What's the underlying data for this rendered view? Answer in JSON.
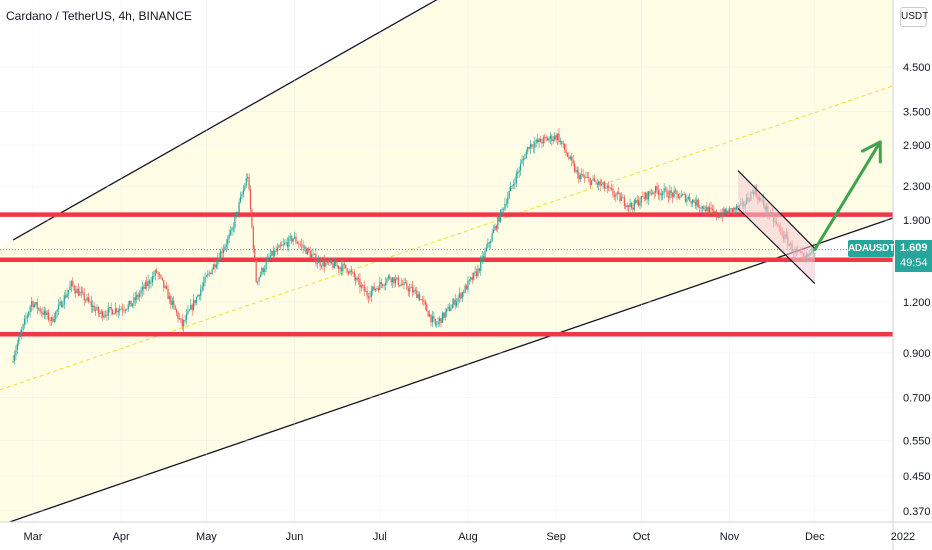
{
  "header": {
    "title": "Cardano / TetherUS, 4h, BINANCE",
    "currency": "USDT"
  },
  "price_tag": {
    "symbol": "ADAUSDT",
    "price": "1.609",
    "timer": "49:54",
    "color": "#26a69a"
  },
  "colors": {
    "up_candle": "#26a69a",
    "down_candle": "#ef5350",
    "support_resistance_line": "#f23645",
    "channel_fill": "#fffde6",
    "channel_line": "#131722",
    "channel_midline": "#f7e24a",
    "falling_wedge_fill": "#f8c8d4",
    "projection_arrow": "#3fa34d"
  },
  "chart_data": {
    "type": "candlestick",
    "symbol": "ADAUSDT",
    "interval": "4h",
    "exchange": "BINANCE",
    "y_scale": "log",
    "y_ticks": [
      "4.500",
      "3.500",
      "2.900",
      "2.300",
      "1.900",
      "1.200",
      "0.900",
      "0.700",
      "0.550",
      "0.450",
      "0.370"
    ],
    "x_ticks": [
      "Mar",
      "Apr",
      "May",
      "Jun",
      "Jul",
      "Aug",
      "Sep",
      "Oct",
      "Nov",
      "Dec",
      "2022"
    ],
    "last_price": 1.609,
    "price_path": [
      {
        "x": "2021-02-22",
        "y": 0.86
      },
      {
        "x": "2021-03-01",
        "y": 1.2
      },
      {
        "x": "2021-03-08",
        "y": 1.08
      },
      {
        "x": "2021-03-15",
        "y": 1.32
      },
      {
        "x": "2021-03-25",
        "y": 1.12
      },
      {
        "x": "2021-04-05",
        "y": 1.18
      },
      {
        "x": "2021-04-14",
        "y": 1.42
      },
      {
        "x": "2021-04-23",
        "y": 1.05
      },
      {
        "x": "2021-05-01",
        "y": 1.35
      },
      {
        "x": "2021-05-10",
        "y": 1.75
      },
      {
        "x": "2021-05-16",
        "y": 2.45
      },
      {
        "x": "2021-05-19",
        "y": 1.35
      },
      {
        "x": "2021-05-24",
        "y": 1.55
      },
      {
        "x": "2021-06-01",
        "y": 1.72
      },
      {
        "x": "2021-06-10",
        "y": 1.5
      },
      {
        "x": "2021-06-20",
        "y": 1.45
      },
      {
        "x": "2021-06-27",
        "y": 1.25
      },
      {
        "x": "2021-07-05",
        "y": 1.38
      },
      {
        "x": "2021-07-15",
        "y": 1.25
      },
      {
        "x": "2021-07-21",
        "y": 1.05
      },
      {
        "x": "2021-07-30",
        "y": 1.25
      },
      {
        "x": "2021-08-05",
        "y": 1.43
      },
      {
        "x": "2021-08-14",
        "y": 2.05
      },
      {
        "x": "2021-08-23",
        "y": 2.9
      },
      {
        "x": "2021-09-02",
        "y": 3.05
      },
      {
        "x": "2021-09-09",
        "y": 2.45
      },
      {
        "x": "2021-09-18",
        "y": 2.3
      },
      {
        "x": "2021-09-28",
        "y": 2.05
      },
      {
        "x": "2021-10-06",
        "y": 2.25
      },
      {
        "x": "2021-10-18",
        "y": 2.15
      },
      {
        "x": "2021-10-28",
        "y": 1.95
      },
      {
        "x": "2021-11-06",
        "y": 2.05
      },
      {
        "x": "2021-11-10",
        "y": 2.25
      },
      {
        "x": "2021-11-18",
        "y": 1.85
      },
      {
        "x": "2021-11-24",
        "y": 1.6
      },
      {
        "x": "2021-11-28",
        "y": 1.52
      },
      {
        "x": "2021-12-01",
        "y": 1.61
      }
    ],
    "horizontal_levels": [
      1.96,
      1.52,
      1.0
    ],
    "channel": {
      "upper": [
        {
          "x": "2021-02-22",
          "y": 1.7
        },
        {
          "x": "2021-06-24",
          "y": 5.08
        },
        {
          "x": "2021-08-21",
          "y": 8.7
        }
      ],
      "middle": [
        {
          "x": "2021-02-22",
          "y": 0.75
        },
        {
          "x": "2021-12-31",
          "y": 4.1
        }
      ],
      "lower": [
        {
          "x": "2021-02-22",
          "y": 0.35
        },
        {
          "x": "2021-12-31",
          "y": 1.95
        }
      ]
    },
    "falling_wedge": {
      "upper": [
        {
          "x": "2021-11-04",
          "y": 2.51
        },
        {
          "x": "2021-12-01",
          "y": 1.62
        }
      ],
      "lower": [
        {
          "x": "2021-11-04",
          "y": 2.03
        },
        {
          "x": "2021-12-01",
          "y": 1.33
        }
      ]
    },
    "projection_arrow": {
      "from": {
        "x": "2021-12-01",
        "y": 1.61
      },
      "to": {
        "x": "2021-12-24",
        "y": 2.95
      }
    }
  }
}
